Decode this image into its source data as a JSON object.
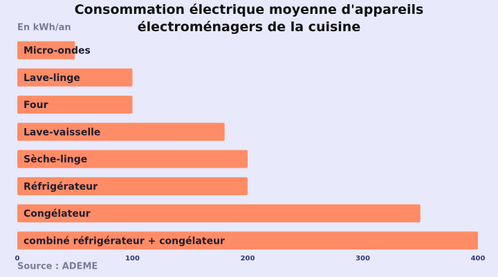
{
  "chart_data": {
    "type": "bar",
    "orientation": "horizontal",
    "title": "Consommation électrique moyenne d'appareils électroménagers de la cuisine",
    "subtitle": "En kWh/an",
    "source": "Source : ADEME",
    "categories": [
      "Micro-ondes",
      "Lave-linge",
      "Four",
      "Lave-vaisselle",
      "Sèche-linge",
      "Réfrigérateur",
      "Congélateur",
      "combiné réfrigérateur + congélateur"
    ],
    "values": [
      50,
      100,
      100,
      180,
      200,
      200,
      350,
      400
    ],
    "color": "#ff8c66",
    "xlim": [
      0,
      400
    ],
    "xticks": [
      0,
      100,
      200,
      300,
      400
    ]
  }
}
